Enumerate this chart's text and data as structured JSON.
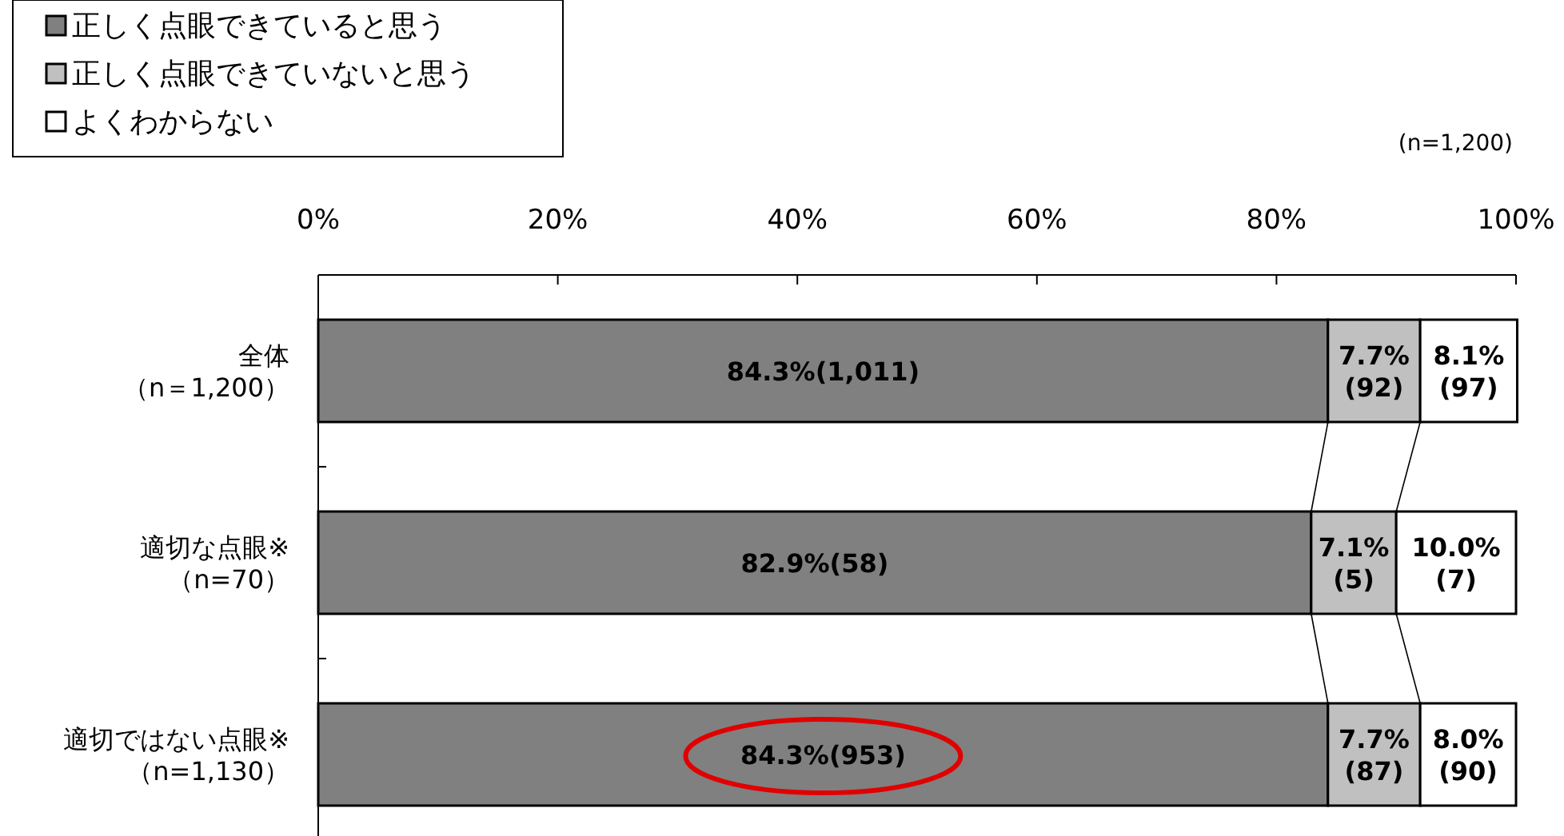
{
  "chart_data": {
    "type": "bar",
    "orientation": "horizontal",
    "stacked": true,
    "categories": [
      "全体（n＝1,200）",
      "適切な点眼※（n=70）",
      "適切ではない点眼※（n=1,130）"
    ],
    "series": [
      {
        "name": "正しく点眼できていると思う",
        "color": "#808080",
        "values": [
          84.3,
          82.9,
          84.3
        ],
        "value_labels": [
          "84.3%(1,011)",
          "82.9%(58)",
          "84.3%(953)"
        ]
      },
      {
        "name": "正しく点眼できていないと思う",
        "color": "#c0c0c0",
        "values": [
          7.7,
          7.1,
          7.7
        ],
        "value_labels": [
          "7.7%\n(92)",
          "7.1%\n(5)",
          "7.7%\n(87)"
        ]
      },
      {
        "name": "よくわからない",
        "color": "#ffffff",
        "values": [
          8.1,
          10.0,
          8.0
        ],
        "value_labels": [
          "8.1%\n(97)",
          "10.0%\n(7)",
          "8.0%\n(90)"
        ]
      }
    ],
    "xlim": [
      0,
      100
    ],
    "xticks": [
      {
        "value": 0,
        "label": "0%"
      },
      {
        "value": 20,
        "label": "20%"
      },
      {
        "value": 40,
        "label": "40%"
      },
      {
        "value": 60,
        "label": "60%"
      },
      {
        "value": 80,
        "label": "80%"
      },
      {
        "value": 100,
        "label": "100%"
      }
    ],
    "legend": "top left",
    "annotations": [
      "(n=1,200)"
    ]
  }
}
